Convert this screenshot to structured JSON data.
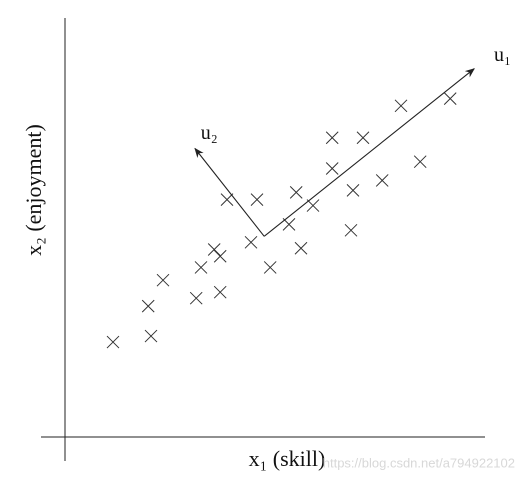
{
  "chart_data": {
    "type": "scatter",
    "xlabel": "x₁ (skill)",
    "ylabel": "x₂ (enjoyment)",
    "x": [
      1.2,
      2.15,
      2.08,
      2.45,
      3.28,
      3.88,
      3.4,
      3.73,
      3.88,
      4.05,
      4.65,
      4.8,
      5.13,
      5.6,
      5.78,
      5.9,
      6.2,
      6.68,
      7.45,
      6.68,
      7.2,
      7.15,
      7.93,
      8.4,
      8.88,
      9.63
    ],
    "values": [
      2.38,
      2.53,
      3.28,
      3.93,
      3.48,
      3.63,
      4.25,
      4.7,
      4.53,
      5.95,
      4.88,
      5.95,
      4.25,
      5.33,
      6.13,
      4.73,
      5.8,
      7.5,
      7.5,
      6.73,
      6.18,
      5.18,
      6.43,
      8.3,
      6.9,
      8.48
    ],
    "color": "#333333",
    "xlim": [
      -0.6,
      10.5
    ],
    "ylim": [
      -0.6,
      10.5
    ],
    "vectors": [
      {
        "label": "u₁",
        "from": [
          4.98,
          5.03
        ],
        "to": [
          10.23,
          9.23
        ]
      },
      {
        "label": "u₂",
        "from": [
          4.98,
          5.03
        ],
        "to": [
          3.25,
          7.23
        ]
      }
    ],
    "watermark": "https://blog.csdn.net/a794922102"
  }
}
